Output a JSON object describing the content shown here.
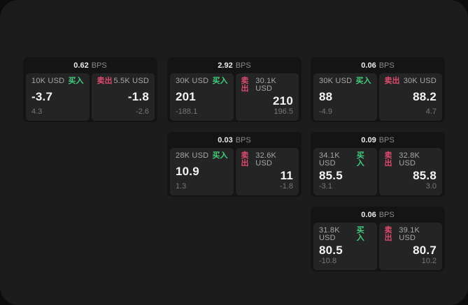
{
  "labels": {
    "buy": "买入",
    "sell": "卖出",
    "bps_suffix": "BPS"
  },
  "colors": {
    "page_bg": "#0d0d0d",
    "panel_bg": "#1c1c1c",
    "card_bg": "#141414",
    "tile_bg": "#242425",
    "buy_green": "#3ecf7c",
    "sell_red": "#dd4a6c"
  },
  "cards": [
    {
      "bps": "0.62",
      "col": 0,
      "row": 0,
      "buy": {
        "size": "10K USD",
        "price": "-3.7",
        "delta": "4.3"
      },
      "sell": {
        "size": "5.5K USD",
        "price": "-1.8",
        "delta": "-2.6"
      }
    },
    {
      "bps": "2.92",
      "col": 1,
      "row": 0,
      "buy": {
        "size": "30K USD",
        "price": "201",
        "delta": "-188.1"
      },
      "sell": {
        "size": "30.1K USD",
        "price": "210",
        "delta": "196.5"
      }
    },
    {
      "bps": "0.06",
      "col": 2,
      "row": 0,
      "buy": {
        "size": "30K USD",
        "price": "88",
        "delta": "-4.9"
      },
      "sell": {
        "size": "30K USD",
        "price": "88.2",
        "delta": "4.7"
      }
    },
    {
      "bps": "0.03",
      "col": 1,
      "row": 1,
      "buy": {
        "size": "28K USD",
        "price": "10.9",
        "delta": "1.3"
      },
      "sell": {
        "size": "32.6K USD",
        "price": "11",
        "delta": "-1.8"
      }
    },
    {
      "bps": "0.09",
      "col": 2,
      "row": 1,
      "buy": {
        "size": "34.1K USD",
        "price": "85.5",
        "delta": "-3.1"
      },
      "sell": {
        "size": "32.8K USD",
        "price": "85.8",
        "delta": "3.0"
      }
    },
    {
      "bps": "0.06",
      "col": 2,
      "row": 2,
      "buy": {
        "size": "31.8K USD",
        "price": "80.5",
        "delta": "-10.8"
      },
      "sell": {
        "size": "39.1K USD",
        "price": "80.7",
        "delta": "10.2"
      }
    }
  ]
}
